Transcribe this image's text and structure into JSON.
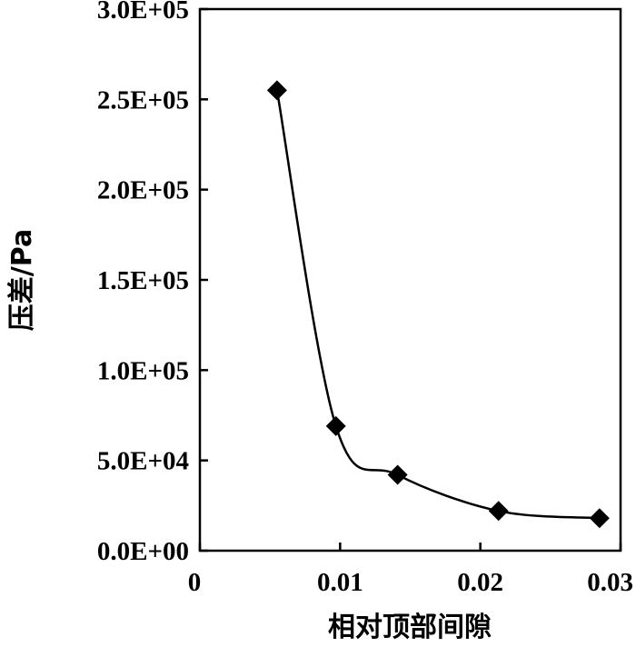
{
  "chart_data": {
    "type": "line",
    "title": "",
    "xlabel": "相对顶部间隙",
    "ylabel": "压差/Pa",
    "xlim": [
      0,
      0.03
    ],
    "ylim": [
      0,
      300000
    ],
    "x_ticks": [
      {
        "value": 0,
        "label": "0"
      },
      {
        "value": 0.01,
        "label": "0.01"
      },
      {
        "value": 0.02,
        "label": "0.02"
      },
      {
        "value": 0.03,
        "label": "0.03"
      }
    ],
    "y_ticks": [
      {
        "value": 0,
        "label": "0.0E+00"
      },
      {
        "value": 50000,
        "label": "5.0E+04"
      },
      {
        "value": 100000,
        "label": "1.0E+05"
      },
      {
        "value": 150000,
        "label": "1.5E+05"
      },
      {
        "value": 200000,
        "label": "2.0E+05"
      },
      {
        "value": 250000,
        "label": "2.5E+05"
      },
      {
        "value": 300000,
        "label": "3.0E+05"
      }
    ],
    "grid": false,
    "legend": "none",
    "series": [
      {
        "marker": "diamond",
        "color": "#000000",
        "smooth": true,
        "points": [
          {
            "x": 0.0055,
            "y": 255000
          },
          {
            "x": 0.0097,
            "y": 69000
          },
          {
            "x": 0.0141,
            "y": 42000
          },
          {
            "x": 0.0213,
            "y": 22000
          },
          {
            "x": 0.0285,
            "y": 18000
          }
        ]
      }
    ]
  }
}
